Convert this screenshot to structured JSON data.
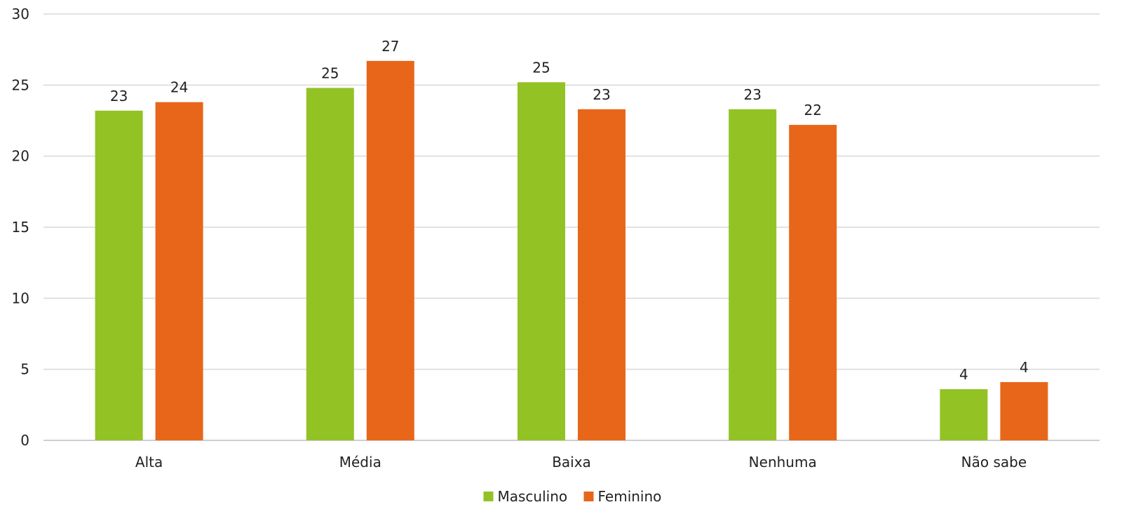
{
  "chart_data": {
    "type": "bar",
    "title": "",
    "xlabel": "",
    "ylabel": "",
    "ylim": [
      0,
      30
    ],
    "yticks": [
      0,
      5,
      10,
      15,
      20,
      25,
      30
    ],
    "grid": true,
    "legend_position": "bottom",
    "categories": [
      "Alta",
      "Média",
      "Baixa",
      "Nenhuma",
      "Não sabe"
    ],
    "series": [
      {
        "name": "Masculino",
        "color": "#93C225",
        "values": [
          23.2,
          24.8,
          25.2,
          23.3,
          3.6
        ],
        "labels": [
          "23",
          "25",
          "25",
          "23",
          "4"
        ]
      },
      {
        "name": "Feminino",
        "color": "#E8661A",
        "values": [
          23.8,
          26.7,
          23.3,
          22.2,
          4.1
        ],
        "labels": [
          "24",
          "27",
          "23",
          "22",
          "4"
        ]
      }
    ]
  }
}
